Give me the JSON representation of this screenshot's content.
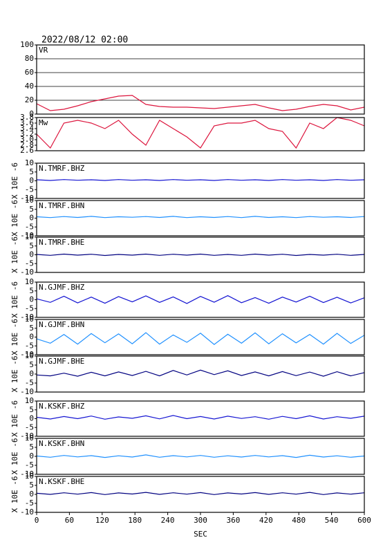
{
  "chart_data": [
    {
      "type": "line",
      "title": "2022/08/12 02:00",
      "xlim": [
        0,
        600
      ],
      "x": [
        0,
        25,
        50,
        75,
        100,
        125,
        150,
        175,
        200,
        225,
        250,
        275,
        300,
        325,
        350,
        375,
        400,
        425,
        450,
        475,
        500,
        525,
        550,
        575,
        600
      ],
      "ylim": [
        0,
        100
      ],
      "yticks": [
        0,
        20,
        40,
        60,
        80,
        100
      ],
      "grid": true,
      "series": [
        {
          "name": "VR",
          "color": "#dc143c",
          "values": [
            15,
            5,
            7,
            12,
            18,
            22,
            26,
            27,
            14,
            11,
            10,
            10,
            9,
            8,
            10,
            12,
            14,
            9,
            5,
            7,
            11,
            14,
            12,
            6,
            10
          ]
        }
      ]
    },
    {
      "type": "line",
      "xlim": [
        0,
        600
      ],
      "x": [
        0,
        25,
        50,
        75,
        100,
        125,
        150,
        175,
        200,
        225,
        250,
        275,
        300,
        325,
        350,
        375,
        400,
        425,
        450,
        475,
        500,
        525,
        550,
        575,
        600
      ],
      "ylim": [
        2.6,
        3.8
      ],
      "yticks": [
        2.6,
        2.8,
        {
          "value": 3,
          "label": "3.0"
        },
        3.2,
        3.4,
        3.6,
        3.8
      ],
      "grid": false,
      "series": [
        {
          "name": "Mw",
          "color": "#dc143c",
          "values": [
            3.2,
            2.7,
            3.6,
            3.7,
            3.6,
            3.4,
            3.7,
            3.2,
            2.8,
            3.7,
            3.4,
            3.1,
            2.7,
            3.5,
            3.6,
            3.6,
            3.7,
            3.4,
            3.3,
            2.7,
            3.6,
            3.4,
            3.8,
            3.7,
            3.5
          ]
        }
      ]
    },
    {
      "type": "line",
      "xlim": [
        0,
        600
      ],
      "x": [
        0,
        25,
        50,
        75,
        100,
        125,
        150,
        175,
        200,
        225,
        250,
        275,
        300,
        325,
        350,
        375,
        400,
        425,
        450,
        475,
        500,
        525,
        550,
        575,
        600
      ],
      "ylim": [
        -10,
        10
      ],
      "yticks": [
        -10,
        -5,
        0,
        5,
        10
      ],
      "ylabel": "X 10E -6",
      "series": [
        {
          "name": "N.TMRF.BHZ",
          "color": "#1414d2",
          "values": [
            0.6,
            0.2,
            0.7,
            0.3,
            0.6,
            0.2,
            0.7,
            0.3,
            0.6,
            0.2,
            0.7,
            0.3,
            0.6,
            0.2,
            0.7,
            0.3,
            0.6,
            0.2,
            0.7,
            0.3,
            0.6,
            0.2,
            0.7,
            0.3,
            0.6
          ]
        }
      ]
    },
    {
      "type": "line",
      "xlim": [
        0,
        600
      ],
      "x": [
        0,
        25,
        50,
        75,
        100,
        125,
        150,
        175,
        200,
        225,
        250,
        275,
        300,
        325,
        350,
        375,
        400,
        425,
        450,
        475,
        500,
        525,
        550,
        575,
        600
      ],
      "ylim": [
        -10,
        10
      ],
      "yticks": [
        -10,
        -5,
        0,
        5,
        10
      ],
      "ylabel": "X 10E -6",
      "series": [
        {
          "name": "N.TMRF.BHN",
          "color": "#1e90ff",
          "values": [
            0.8,
            0.3,
            0.9,
            0.4,
            1,
            0.3,
            0.8,
            0.5,
            0.9,
            0.4,
            1,
            0.3,
            0.8,
            0.4,
            0.9,
            0.3,
            1,
            0.4,
            0.8,
            0.3,
            0.9,
            0.5,
            0.8,
            0.4,
            0.9
          ]
        }
      ]
    },
    {
      "type": "line",
      "xlim": [
        0,
        600
      ],
      "x": [
        0,
        25,
        50,
        75,
        100,
        125,
        150,
        175,
        200,
        225,
        250,
        275,
        300,
        325,
        350,
        375,
        400,
        425,
        450,
        475,
        500,
        525,
        550,
        575,
        600
      ],
      "ylim": [
        -10,
        10
      ],
      "yticks": [
        -10,
        -5,
        0,
        5,
        10
      ],
      "ylabel": "X 10E -6",
      "series": [
        {
          "name": "N.TMRF.BHE",
          "color": "#000080",
          "values": [
            0.2,
            -0.3,
            0.4,
            -0.2,
            0.3,
            -0.4,
            0.2,
            -0.2,
            0.4,
            -0.3,
            0.3,
            -0.2,
            0.4,
            -0.3,
            0.2,
            -0.3,
            0.4,
            -0.2,
            0.3,
            -0.4,
            0.2,
            -0.2,
            0.3,
            -0.3,
            0.2
          ]
        }
      ]
    },
    {
      "type": "line",
      "xlim": [
        0,
        600
      ],
      "x": [
        0,
        25,
        50,
        75,
        100,
        125,
        150,
        175,
        200,
        225,
        250,
        275,
        300,
        325,
        350,
        375,
        400,
        425,
        450,
        475,
        500,
        525,
        550,
        575,
        600
      ],
      "ylim": [
        -10,
        10
      ],
      "yticks": [
        -10,
        -5,
        0,
        5,
        10
      ],
      "ylabel": "X 10E -6",
      "series": [
        {
          "name": "N.GJMF.BHZ",
          "color": "#1414d2",
          "values": [
            0.5,
            -1.5,
            2,
            -1.8,
            1.5,
            -2,
            1.8,
            -1.2,
            2.2,
            -1.5,
            1.6,
            -2.1,
            1.9,
            -1.4,
            2.3,
            -1.7,
            1.2,
            -2,
            1.5,
            -1.3,
            2,
            -1.6,
            1.4,
            -1.8,
            1.1
          ]
        }
      ]
    },
    {
      "type": "line",
      "xlim": [
        0,
        600
      ],
      "x": [
        0,
        25,
        50,
        75,
        100,
        125,
        150,
        175,
        200,
        225,
        250,
        275,
        300,
        325,
        350,
        375,
        400,
        425,
        450,
        475,
        500,
        525,
        550,
        575,
        600
      ],
      "ylim": [
        -10,
        10
      ],
      "yticks": [
        -10,
        -5,
        0,
        5,
        10
      ],
      "ylabel": "X 10E -6",
      "series": [
        {
          "name": "N.GJMF.BHN",
          "color": "#1e90ff",
          "values": [
            -1,
            -3.5,
            1.5,
            -4,
            2,
            -3.2,
            1.8,
            -3.8,
            2.5,
            -4,
            1.2,
            -3,
            2.2,
            -4.2,
            1.6,
            -3.5,
            2.4,
            -3.8,
            1.9,
            -3.3,
            1.5,
            -4,
            2.1,
            -3.6,
            1
          ]
        }
      ]
    },
    {
      "type": "line",
      "xlim": [
        0,
        600
      ],
      "x": [
        0,
        25,
        50,
        75,
        100,
        125,
        150,
        175,
        200,
        225,
        250,
        275,
        300,
        325,
        350,
        375,
        400,
        425,
        450,
        475,
        500,
        525,
        550,
        575,
        600
      ],
      "ylim": [
        -10,
        10
      ],
      "yticks": [
        -10,
        -5,
        0,
        5,
        10
      ],
      "ylabel": "X 10E -6",
      "series": [
        {
          "name": "N.GJMF.BHE",
          "color": "#000080",
          "values": [
            -0.5,
            -1,
            0.5,
            -1.2,
            1,
            -1,
            1.2,
            -0.8,
            1.5,
            -1,
            2,
            -0.5,
            2.2,
            -0.3,
            1.8,
            -0.8,
            1.2,
            -1,
            1.4,
            -0.9,
            1.1,
            -1.2,
            1.3,
            -1,
            0.8
          ]
        }
      ]
    },
    {
      "type": "line",
      "xlim": [
        0,
        600
      ],
      "x": [
        0,
        25,
        50,
        75,
        100,
        125,
        150,
        175,
        200,
        225,
        250,
        275,
        300,
        325,
        350,
        375,
        400,
        425,
        450,
        475,
        500,
        525,
        550,
        575,
        600
      ],
      "ylim": [
        -10,
        10
      ],
      "yticks": [
        -10,
        -5,
        0,
        5,
        10
      ],
      "ylabel": "X 10E -6",
      "series": [
        {
          "name": "N.KSKF.BHZ",
          "color": "#1414d2",
          "values": [
            0.8,
            -0.2,
            1.2,
            0,
            1.5,
            -0.3,
            1,
            0.2,
            1.6,
            -0.1,
            1.8,
            0,
            1.2,
            -0.2,
            1.4,
            0.1,
            1.1,
            -0.3,
            1.3,
            0,
            1.6,
            -0.2,
            1.1,
            0.2,
            1.4
          ]
        }
      ]
    },
    {
      "type": "line",
      "xlim": [
        0,
        600
      ],
      "x": [
        0,
        25,
        50,
        75,
        100,
        125,
        150,
        175,
        200,
        225,
        250,
        275,
        300,
        325,
        350,
        375,
        400,
        425,
        450,
        475,
        500,
        525,
        550,
        575,
        600
      ],
      "ylim": [
        -10,
        10
      ],
      "yticks": [
        -10,
        -5,
        0,
        5,
        10
      ],
      "ylabel": "X 10E -6",
      "series": [
        {
          "name": "N.KSKF.BHN",
          "color": "#1e90ff",
          "values": [
            0.2,
            -0.5,
            0.5,
            -0.3,
            0.4,
            -0.6,
            0.3,
            -0.4,
            0.8,
            -0.5,
            0.4,
            -0.3,
            0.5,
            -0.5,
            0.3,
            -0.4,
            0.5,
            -0.3,
            0.4,
            -0.6,
            0.6,
            -0.4,
            0.3,
            -0.5,
            0.2
          ]
        }
      ]
    },
    {
      "type": "line",
      "xlim": [
        0,
        600
      ],
      "x": [
        0,
        25,
        50,
        75,
        100,
        125,
        150,
        175,
        200,
        225,
        250,
        275,
        300,
        325,
        350,
        375,
        400,
        425,
        450,
        475,
        500,
        525,
        550,
        575,
        600
      ],
      "ylim": [
        -10,
        10
      ],
      "yticks": [
        -10,
        -5,
        0,
        5,
        10
      ],
      "ylabel": "X 10E -6",
      "xlabel": "SEC",
      "xticks": [
        0,
        60,
        120,
        180,
        240,
        300,
        360,
        420,
        480,
        540,
        600
      ],
      "series": [
        {
          "name": "N.KSKF.BHE",
          "color": "#000080",
          "values": [
            0.6,
            0,
            0.9,
            0.1,
            1,
            -0.1,
            0.8,
            0.2,
            1.1,
            0,
            0.9,
            0.1,
            1,
            -0.1,
            0.8,
            0.2,
            1,
            0,
            0.9,
            0.1,
            1.1,
            -0.1,
            0.8,
            0.1,
            0.9
          ]
        }
      ]
    }
  ]
}
